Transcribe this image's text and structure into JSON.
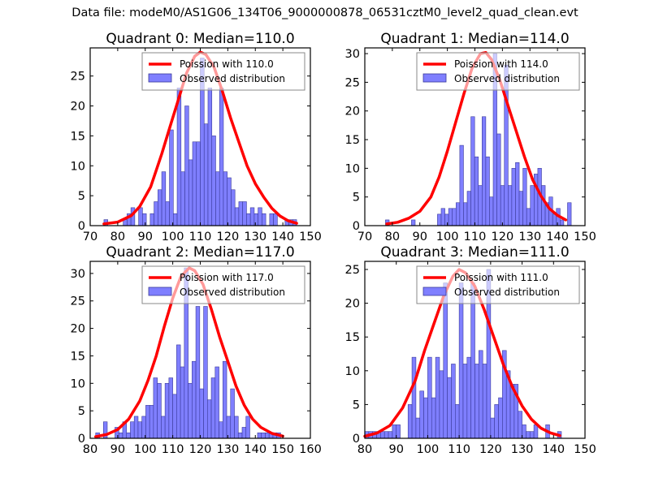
{
  "suptitle": "Data file: modeM0/AS1G06_134T06_9000000878_06531cztM0_level2_quad_clean.evt",
  "colors": {
    "poisson_line": "#ff0000",
    "bar_fill": "#7f7fff",
    "bar_edge": "#3a3a99"
  },
  "chart_data": [
    {
      "type": "bar",
      "title": "Quadrant 0: Median=110.0",
      "median": 110.0,
      "xlim": [
        70,
        150
      ],
      "ylim": [
        0,
        29.7
      ],
      "xticks": [
        "70",
        "80",
        "90",
        "100",
        "110",
        "120",
        "130",
        "140",
        "150"
      ],
      "yticks": [
        "0",
        "5",
        "10",
        "15",
        "20",
        "25"
      ],
      "legend": {
        "placement": "top-right",
        "entries": [
          "Poission with 110.0",
          "Observed distribution"
        ]
      },
      "bin_start": 75,
      "bin_width": 1.4,
      "values": [
        1,
        0,
        0,
        0,
        0,
        1,
        2,
        3,
        0,
        3,
        2,
        0,
        2,
        4,
        6,
        9,
        4,
        16,
        2,
        23,
        9,
        20,
        11,
        14,
        14,
        28,
        17,
        23,
        15,
        9,
        23,
        9,
        8,
        6,
        3,
        4,
        4,
        2,
        3,
        2,
        3,
        2,
        0,
        2,
        2,
        0,
        0,
        1,
        1,
        1
      ],
      "poisson": [
        [
          75,
          0.3
        ],
        [
          80,
          0.6
        ],
        [
          85,
          1.7
        ],
        [
          88,
          3.2
        ],
        [
          92,
          6.5
        ],
        [
          96,
          12
        ],
        [
          99,
          16.5
        ],
        [
          102,
          21
        ],
        [
          105,
          25.5
        ],
        [
          108,
          28.3
        ],
        [
          110,
          29
        ],
        [
          112,
          28.6
        ],
        [
          115,
          26.5
        ],
        [
          118,
          22.5
        ],
        [
          121,
          18
        ],
        [
          124,
          14
        ],
        [
          127,
          10
        ],
        [
          130,
          7
        ],
        [
          133,
          4.8
        ],
        [
          136,
          2.9
        ],
        [
          139,
          1.6
        ],
        [
          142,
          0.8
        ],
        [
          145,
          0.4
        ]
      ]
    },
    {
      "type": "bar",
      "title": "Quadrant 1: Median=114.0",
      "median": 114.0,
      "xlim": [
        70,
        150
      ],
      "ylim": [
        0,
        31
      ],
      "xticks": [
        "70",
        "80",
        "90",
        "100",
        "110",
        "120",
        "130",
        "140",
        "150"
      ],
      "yticks": [
        "0",
        "5",
        "10",
        "15",
        "20",
        "25",
        "30"
      ],
      "legend": {
        "placement": "top-right",
        "entries": [
          "Poission with 114.0",
          "Observed distribution"
        ]
      },
      "bin_start": 77.5,
      "bin_width": 1.35,
      "values": [
        1,
        0,
        0,
        0,
        0,
        0,
        0,
        1,
        0,
        0,
        0,
        0,
        0,
        0,
        2,
        3,
        2,
        3,
        3,
        4,
        14,
        4,
        6,
        19,
        12,
        7,
        19,
        12,
        5,
        30,
        16,
        7,
        28,
        7,
        10,
        11,
        6,
        10,
        3,
        7,
        9,
        10,
        7,
        4,
        5,
        2,
        3,
        1,
        0,
        4
      ],
      "poisson": [
        [
          78,
          0.3
        ],
        [
          82,
          0.6
        ],
        [
          86,
          1.3
        ],
        [
          90,
          2.5
        ],
        [
          94,
          5
        ],
        [
          97,
          8.5
        ],
        [
          100,
          13
        ],
        [
          103,
          18
        ],
        [
          106,
          23
        ],
        [
          109,
          27.5
        ],
        [
          112,
          30
        ],
        [
          114,
          30.2
        ],
        [
          116,
          29
        ],
        [
          119,
          25.5
        ],
        [
          122,
          21
        ],
        [
          125,
          16.5
        ],
        [
          128,
          12
        ],
        [
          131,
          8
        ],
        [
          134,
          5.2
        ],
        [
          137,
          3
        ],
        [
          140,
          1.8
        ],
        [
          143,
          1
        ]
      ]
    },
    {
      "type": "bar",
      "title": "Quadrant 2: Median=117.0",
      "median": 117.0,
      "xlim": [
        80,
        160
      ],
      "ylim": [
        0,
        32.2
      ],
      "xticks": [
        "80",
        "90",
        "100",
        "110",
        "120",
        "130",
        "140",
        "150",
        "160"
      ],
      "yticks": [
        "0",
        "5",
        "10",
        "15",
        "20",
        "25",
        "30"
      ],
      "legend": {
        "placement": "top-right",
        "entries": [
          "Poission with 117.0",
          "Observed distribution"
        ]
      },
      "bin_start": 82,
      "bin_width": 1.4,
      "values": [
        1,
        0,
        3,
        0,
        0,
        2,
        1,
        3,
        1,
        3,
        4,
        3,
        4,
        6,
        6,
        11,
        10,
        4,
        10,
        11,
        8,
        17,
        13,
        31,
        10,
        14,
        24,
        9,
        24,
        7,
        11,
        13,
        3,
        14,
        4,
        9,
        4,
        1,
        2,
        4,
        0,
        0,
        1,
        1,
        1,
        1,
        1,
        1
      ],
      "poisson": [
        [
          82,
          0.3
        ],
        [
          86,
          0.7
        ],
        [
          90,
          1.6
        ],
        [
          94,
          3.5
        ],
        [
          98,
          6.8
        ],
        [
          101,
          10.5
        ],
        [
          104,
          15
        ],
        [
          107,
          20.5
        ],
        [
          110,
          25.5
        ],
        [
          113,
          29.5
        ],
        [
          116,
          31
        ],
        [
          118,
          30.5
        ],
        [
          121,
          28
        ],
        [
          124,
          23.5
        ],
        [
          127,
          18.5
        ],
        [
          130,
          14
        ],
        [
          133,
          9.5
        ],
        [
          136,
          6
        ],
        [
          139,
          3.5
        ],
        [
          142,
          2
        ],
        [
          146,
          0.9
        ],
        [
          150,
          0.4
        ]
      ]
    },
    {
      "type": "bar",
      "title": "Quadrant 3: Median=111.0",
      "median": 111.0,
      "xlim": [
        80,
        150
      ],
      "ylim": [
        0,
        26.2
      ],
      "xticks": [
        "80",
        "90",
        "100",
        "110",
        "120",
        "130",
        "140",
        "150"
      ],
      "yticks": [
        "0",
        "5",
        "10",
        "15",
        "20",
        "25"
      ],
      "legend": {
        "placement": "top-right",
        "entries": [
          "Poission with 111.0",
          "Observed distribution"
        ]
      },
      "bin_start": 80,
      "bin_width": 1.25,
      "values": [
        1,
        1,
        1,
        1,
        1,
        1,
        1,
        2,
        2,
        0,
        0,
        5,
        12,
        3,
        7,
        6,
        12,
        6,
        12,
        10,
        23,
        9,
        11,
        5,
        23,
        11,
        12,
        23,
        11,
        13,
        11,
        25,
        3,
        5,
        6,
        13,
        10,
        8,
        8,
        4,
        2,
        1,
        1,
        2,
        0,
        0,
        2,
        0,
        0,
        1
      ],
      "poisson": [
        [
          80,
          0.3
        ],
        [
          84,
          0.8
        ],
        [
          88,
          1.9
        ],
        [
          92,
          4.5
        ],
        [
          96,
          8.5
        ],
        [
          99,
          13
        ],
        [
          102,
          17
        ],
        [
          105,
          21
        ],
        [
          108,
          24
        ],
        [
          110,
          25
        ],
        [
          112,
          24.5
        ],
        [
          115,
          22.5
        ],
        [
          118,
          19
        ],
        [
          121,
          15
        ],
        [
          124,
          11
        ],
        [
          127,
          7.5
        ],
        [
          130,
          4.8
        ],
        [
          133,
          2.8
        ],
        [
          136,
          1.5
        ],
        [
          139,
          0.8
        ],
        [
          142,
          0.4
        ]
      ]
    }
  ]
}
